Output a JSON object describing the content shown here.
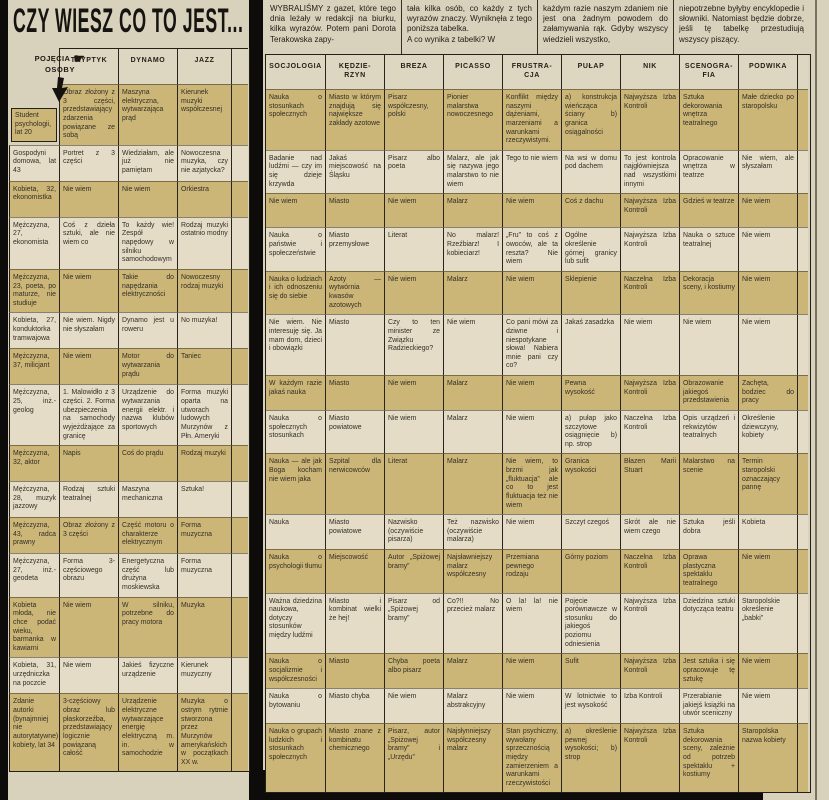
{
  "page": {
    "title": "CZY WIESZ CO TO JEST..."
  },
  "colors": {
    "paper": "#d8d1bc",
    "band_dark": "#cbb577",
    "band_light": "#e4dcc6",
    "ink": "#2c2820",
    "scan_black": "#0d0c0a"
  },
  "intro": {
    "columns": [
      "WYBRALIŚMY z gazet, które tego dnia leżały w redakcji na biurku, kilka wyrazów. Potem pani Dorota Terakowska zapy-",
      "tała kilka osób, co każdy z tych wyrazów znaczy. Wyniknęła z tego poniższa tabelka.\n A co wynika z tabelki? W",
      "każdym razie naszym zdaniem nie jest ona żadnym powodem do załamywania rąk. Gdyby wszyscy wiedzieli wszystko,",
      "niepotrzebne byłyby encyklopedie i słowniki. Natomiast będzie dobrze, jeśli tę tabelkę przestudiują wszyscy piszący."
    ]
  },
  "left_table": {
    "corner": {
      "top_label": "POJĘCIA",
      "bottom_label": "OSOBY"
    },
    "headers": [
      "TRYPTYK",
      "DYNAMO",
      "JAZZ"
    ],
    "rows": [
      {
        "person": "Student psychologii, lat 20",
        "cells": [
          "Obraz złożony z 3 części, przedstawiający zdarzenia powiązane ze sobą",
          "Maszyna elektryczna, wytwarzająca prąd",
          "Kierunek muzyki współczesnej"
        ]
      },
      {
        "person": "Gospodyni domowa, lat 43",
        "cells": [
          "Portret z 3 części",
          "Wiedziałam, ale już nie pamiętam",
          "Nowoczesna muzyka, czy nie azjatycka?"
        ]
      },
      {
        "person": "Kobieta, 32, ekonomistka",
        "cells": [
          "Nie wiem",
          "Nie wiem",
          "Orkiestra"
        ]
      },
      {
        "person": "Mężczyzna, 27, ekonomista",
        "cells": [
          "Coś z dzieła sztuki, ale nie wiem co",
          "To każdy wie! Zespół napędowy w silniku samochodowym",
          "Rodzaj muzyki ostatnio modny"
        ]
      },
      {
        "person": "Mężczyzna, 23, poeta, po maturze, nie studiuje",
        "cells": [
          "Nie wiem",
          "Takie do napędzania elektryczności",
          "Nowoczesny rodzaj muzyki"
        ]
      },
      {
        "person": "Kobieta, 27, konduktorka tramwajowa",
        "cells": [
          "Nie wiem. Nigdy nie słyszałam",
          "Dynamo jest u roweru",
          "No muzyka!"
        ]
      },
      {
        "person": "Mężczyzna, 37, milicjant",
        "cells": [
          "Nie wiem",
          "Motor do wytwarzania prądu",
          "Taniec"
        ]
      },
      {
        "person": "Mężczyzna, 25, inż.-geolog",
        "cells": [
          "1. Malowidło z 3 części. 2. Forma ubezpieczenia na samochody wyjeżdżające za granicę",
          "Urządzenie do wytwarzania energii elektr. i nazwa klubów sportowych",
          "Forma muzyki oparta na utworach ludowych Murzynów z Płn. Ameryki"
        ]
      },
      {
        "person": "Mężczyzna, 32, aktor",
        "cells": [
          "Napis",
          "Coś do prądu",
          "Rodzaj muzyki"
        ]
      },
      {
        "person": "Mężczyzna, 28, muzyk jazzowy",
        "cells": [
          "Rodzaj sztuki teatralnej",
          "Maszyna mechaniczna",
          "Sztuka!"
        ]
      },
      {
        "person": "Mężczyzna, 43, radca prawny",
        "cells": [
          "Obraz złożony z 3 części",
          "Część motoru o charakterze elektrycznym",
          "Forma muzyczna"
        ]
      },
      {
        "person": "Mężczyzna, 27, inż.-geodeta",
        "cells": [
          "Forma 3-częściowego obrazu",
          "Energetyczna część lub drużyna moskiewska",
          "Forma muzyczna"
        ]
      },
      {
        "person": "Kobieta młoda, nie chce podać wieku, barmanka w kawiarni",
        "cells": [
          "Nie wiem",
          "W silniku, potrzebne do pracy motora",
          "Muzyka"
        ]
      },
      {
        "person": "Kobieta, 31, urzędniczka na poczcie",
        "cells": [
          "Nie wiem",
          "Jakieś fizyczne urządzenie",
          "Kierunek muzyczny"
        ]
      },
      {
        "person": "Zdanie autorki (bynajmniej nie autorytatywne) kobiety, lat 34",
        "cells": [
          "3-częściowy obraz lub płaskorzeźba, przedstawiający logicznie powiązaną całość",
          "Urządzenie elektryczne wytwarzające energię elektryczną m. in. w samochodzie",
          "Muzyka o ostrym rytmie stworzona przez Murzynów amerykańskich w początkach XX w."
        ]
      }
    ]
  },
  "right_table": {
    "headers": [
      "SOCJOLOGIA",
      "KĘDZIE-\nRZYN",
      "BREZA",
      "PICASSO",
      "FRUSTRA-\nCJA",
      "PUŁAP",
      "NIK",
      "SCENOGRA-\nFIA",
      "PODWIKA"
    ],
    "rows": [
      {
        "cells": [
          "Nauka o stosunkach społecznych",
          "Miasto w którym znajdują się największe zakłady azotowe",
          "Pisarz współczesny, polski",
          "Pionier malarstwa nowoczesnego",
          "Konflikt między naszymi dążeniami, marzeniami a warunkami rzeczywistymi.",
          "a) konstrukcja wieńcząca ściany b) granica osiągalności",
          "Najwyższa Izba Kontroli",
          "Sztuka dekorowania wnętrza teatralnego",
          "Małe dziecko po staropolsku"
        ]
      },
      {
        "cells": [
          "Badanie nad ludźmi — czy im się dzieje krzywda",
          "Jakaś miejscowość na Śląsku",
          "Pisarz albo poeta",
          "Malarz, ale jak się nazywa jego malarstwo to nie wiem",
          "Tego to nie wiem",
          "Na wsi w domu pod dachem",
          "To jest kontrola najgłówniejsza nad wszystkimi innymi",
          "Opracowanie wnętrza w teatrze",
          "Nie wiem, ale słyszałam"
        ]
      },
      {
        "cells": [
          "Nie wiem",
          "Miasto",
          "Nie wiem",
          "Malarz",
          "Nie wiem",
          "Coś z dachu",
          "Najwyższa Izba Kontroli",
          "Gdzieś w teatrze",
          "Nie wiem"
        ]
      },
      {
        "cells": [
          "Nauka o państwie i społeczeństwie",
          "Miasto przemysłowe",
          "Literat",
          "No malarz! Rzeźbiarz! I kobieciarz!",
          "„Fru” to coś z owoców, ale ta reszta? Nie wiem",
          "Ogólne określenie górnej granicy lub sufit",
          "Najwyższa Izba Kontroli",
          "Nauka o sztuce teatralnej",
          "Nie wiem"
        ]
      },
      {
        "cells": [
          "Nauka o ludziach i ich odnoszeniu się do siebie",
          "Azoty — wytwórnia kwasów azotowych",
          "Nie wiem",
          "Malarz",
          "Nie wiem",
          "Sklepienie",
          "Naczelna Izba Kontroli",
          "Dekoracja sceny, i kostiumy",
          "Nie wiem"
        ]
      },
      {
        "cells": [
          "Nie wiem. Nie interesuję się. Ja mam dom, dzieci i obowiązki",
          "Miasto",
          "Czy to ten minister ze Związku Radzieckiego?",
          "Nie wiem",
          "Co pani mówi za dziwne i niespotykane słowa! Nabiera mnie pani czy co?",
          "Jakaś zasadzka",
          "Nie wiem",
          "Nie wiem",
          "Nie wiem"
        ]
      },
      {
        "cells": [
          "W każdym razie jakaś nauka",
          "Miasto",
          "Nie wiem",
          "Malarz",
          "Nie wiem",
          "Pewna wysokość",
          "Najwyższa Izba Kontroli",
          "Obrazowanie jakiegoś przedstawienia",
          "Zachęta, bodziec do pracy"
        ]
      },
      {
        "cells": [
          "Nauka o społecznych stosunkach",
          "Miasto powiatowe",
          "Nie wiem",
          "Malarz",
          "Nie wiem",
          "a) pułap jako szczytowe osiągnięcie b) np. strop",
          "Naczelna Izba Kontroli",
          "Opis urządzeń i rekwizytów teatralnych",
          "Określenie dziewczyny, kobiety"
        ]
      },
      {
        "cells": [
          "Nauka — ale jak Boga kocham nie wiem jaka",
          "Szpital dla nerwicowców",
          "Literat",
          "Malarz",
          "Nie wiem, to brzmi jak „fluktuacja” ale co to jest fluktuacja też nie wiem",
          "Granica wysokości",
          "Błazen Marii Stuart",
          "Malarstwo na scenie",
          "Termin staropolski oznaczający pannę"
        ]
      },
      {
        "cells": [
          "Nauka",
          "Miasto powiatowe",
          "Nazwisko (oczywiście pisarza)",
          "Też nazwisko (oczywiście malarza)",
          "Nie wiem",
          "Szczyt czegoś",
          "Skrót ale nie wiem czego",
          "Sztuka jeśli dobra",
          "Kobieta"
        ]
      },
      {
        "cells": [
          "Nauka o psychologii tłumu",
          "Miejscowość",
          "Autor „Spiżowej bramy”",
          "Najsławniejszy malarz współczesny",
          "Przemiana pewnego rodzaju",
          "Górny poziom",
          "Naczelna Izba Kontroli",
          "Oprawa plastyczna spektaklu teatralnego",
          "Nie wiem"
        ]
      },
      {
        "cells": [
          "Ważna dziedzina naukowa, dotyczy stosunków między ludźmi",
          "Miasto i kombinat wielki że hej!",
          "Pisarz od „Spiżowej bramy”",
          "Co?!! No przecież malarz",
          "O la! la! nie wiem",
          "Pojęcie porównawcze w stosunku do jakiegoś poziomu odniesienia",
          "Najwyższa Izba Kontroli",
          "Dziedzina sztuki dotycząca teatru",
          "Staropolskie określenie „babki”"
        ]
      },
      {
        "cells": [
          "Nauka o socjalizmie i współczesności",
          "Miasto",
          "Chyba poeta albo pisarz",
          "Malarz",
          "Nie wiem",
          "Sufit",
          "Najwyższa Izba Kontroli",
          "Jest sztuka i się opracowuje tę sztukę",
          "Nie wiem"
        ]
      },
      {
        "cells": [
          "Nauka o bytowaniu",
          "Miasto chyba",
          "Nie wiem",
          "Malarz abstrakcyjny",
          "Nie wiem",
          "W lotnictwie to jest wysokość",
          "Izba Kontroli",
          "Przerabianie jakiejś książki na utwór sceniczny",
          "Nie wiem"
        ]
      },
      {
        "cells": [
          "Nauka o grupach ludzkich i stosunkach społecznych",
          "Miasto znane z kombinatu chemicznego",
          "Pisarz, autor „Spiżowej bramy” i „Urzędu”",
          "Najsłynniejszy współczesny malarz",
          "Stan psychiczny, wywołany sprzecznością między zamierzeniem a warunkami rzeczywistości",
          "a) określenie pewnej wysokości; b) strop",
          "Najwyższa Izba Kontroli",
          "Sztuka dekorowania sceny, zależnie od potrzeb spektaklu + kostiumy",
          "Staropolska nazwa kobiety"
        ]
      }
    ]
  }
}
